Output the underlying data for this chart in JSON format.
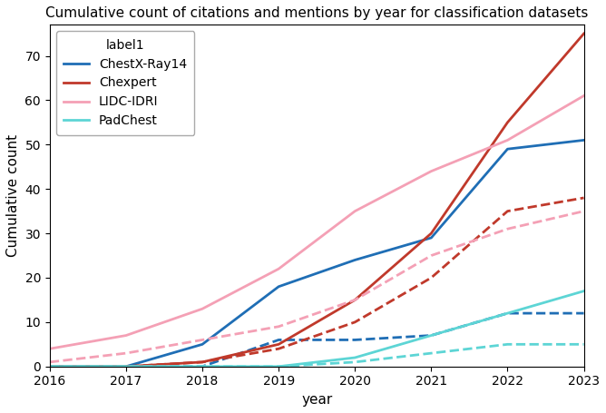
{
  "title": "Cumulative count of citations and mentions by year for classification datasets",
  "xlabel": "year",
  "ylabel": "Cumulative count",
  "years": [
    2016,
    2017,
    2018,
    2019,
    2020,
    2021,
    2022,
    2023
  ],
  "series": {
    "ChestX-Ray14": {
      "color": "#1f6eb5",
      "solid": [
        0,
        0,
        5,
        18,
        24,
        29,
        49,
        51
      ],
      "dashed": [
        0,
        0,
        0,
        6,
        6,
        7,
        12,
        12
      ]
    },
    "Chexpert": {
      "color": "#c0392b",
      "solid": [
        0,
        0,
        1,
        5,
        15,
        30,
        55,
        75
      ],
      "dashed": [
        0,
        0,
        1,
        4,
        10,
        20,
        35,
        38
      ]
    },
    "LIDC-IDRI": {
      "color": "#f4a0b5",
      "solid": [
        4,
        7,
        13,
        22,
        35,
        44,
        51,
        61
      ],
      "dashed": [
        1,
        3,
        6,
        9,
        15,
        25,
        31,
        35
      ]
    },
    "PadChest": {
      "color": "#5dd5d5",
      "solid": [
        0,
        0,
        0,
        0,
        2,
        7,
        12,
        17
      ],
      "dashed": [
        0,
        0,
        0,
        0,
        1,
        3,
        5,
        5
      ]
    }
  },
  "legend_title": "label1",
  "ylim": [
    0,
    77
  ],
  "yticks": [
    0,
    10,
    20,
    30,
    40,
    50,
    60,
    70
  ],
  "xlim": [
    2016,
    2023
  ]
}
